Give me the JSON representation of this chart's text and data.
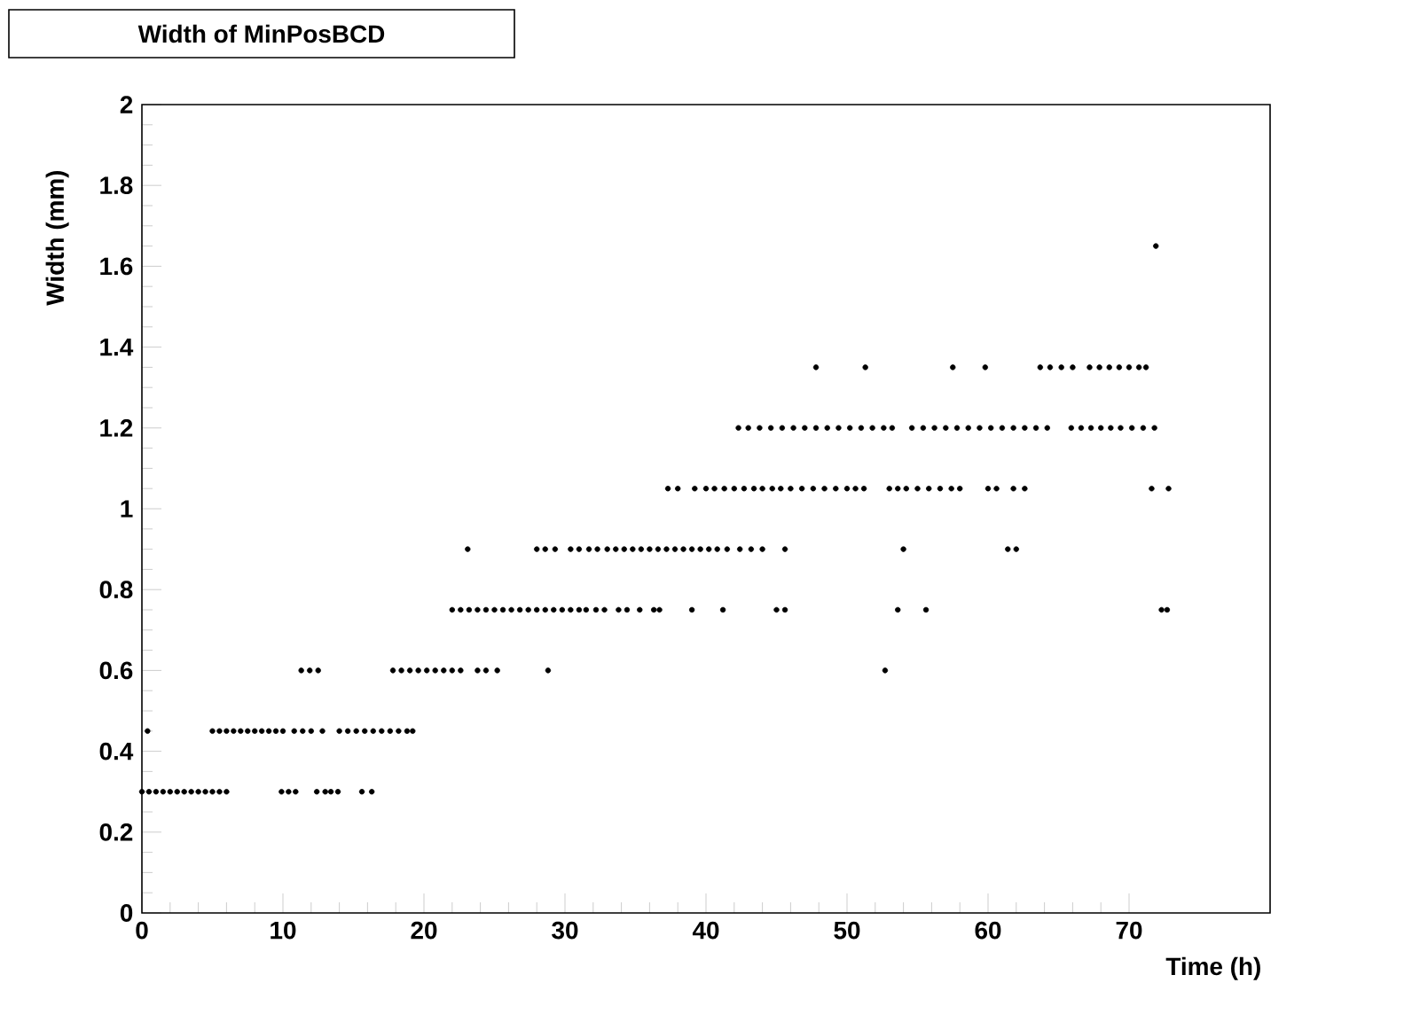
{
  "chart_data": {
    "type": "scatter",
    "title": "Width of MinPosBCD",
    "xlabel": "Time (h)",
    "ylabel": "Width (mm)",
    "color": "#000000",
    "xlim": [
      0,
      80
    ],
    "ylim": [
      0,
      2
    ],
    "xticks": [
      0,
      10,
      20,
      30,
      40,
      50,
      60,
      70
    ],
    "yticks": [
      0,
      0.2,
      0.4,
      0.6,
      0.8,
      1,
      1.2,
      1.4,
      1.6,
      1.8,
      2
    ],
    "x": [
      0,
      0.5,
      1,
      1.5,
      2,
      2.5,
      3,
      3.5,
      4,
      4.5,
      5,
      5.5,
      6,
      9.9,
      10.4,
      10.9,
      12.4,
      13,
      13.4,
      13.9,
      15.6,
      16.3,
      0.4,
      5,
      5.5,
      6,
      6.5,
      7,
      7.5,
      8,
      8.5,
      9,
      9.5,
      10,
      10.8,
      11.4,
      12,
      12.8,
      14,
      14.6,
      15.2,
      15.8,
      16.4,
      17,
      17.6,
      18.2,
      18.8,
      19.2,
      11.3,
      11.9,
      12.5,
      17.8,
      18.4,
      19,
      19.6,
      20.2,
      20.8,
      21.4,
      22,
      22.6,
      23.8,
      24.4,
      25.2,
      28.8,
      52.7,
      22,
      22.6,
      23.2,
      23.8,
      24.4,
      25,
      25.6,
      26.2,
      26.8,
      27.4,
      28,
      28.6,
      29.2,
      29.8,
      30.4,
      31,
      31.5,
      32.2,
      32.8,
      33.8,
      34.4,
      35.3,
      36.3,
      36.7,
      39,
      41.2,
      45,
      45.6,
      53.6,
      55.6,
      72.3,
      72.7,
      23.1,
      28,
      28.6,
      29.3,
      30.4,
      31,
      31.7,
      32.3,
      33,
      33.6,
      34.2,
      34.8,
      35.4,
      36,
      36.6,
      37.2,
      37.8,
      38.4,
      39,
      39.6,
      40.2,
      40.8,
      41.5,
      42.4,
      43.2,
      44,
      45.6,
      54,
      61.4,
      62,
      37.3,
      38,
      39.2,
      40,
      40.6,
      41.3,
      42,
      42.7,
      43.4,
      44,
      44.7,
      45.3,
      46,
      46.8,
      47.6,
      48.4,
      49.2,
      50,
      50.6,
      51.2,
      53,
      53.6,
      54.2,
      55,
      55.8,
      56.6,
      57.4,
      58,
      60,
      60.6,
      61.8,
      62.6,
      71.6,
      72.8,
      42.3,
      43,
      43.8,
      44.6,
      45.4,
      46.2,
      47,
      47.8,
      48.6,
      49.4,
      50.2,
      51,
      51.8,
      52.6,
      53.2,
      54.6,
      55.4,
      56.2,
      57,
      57.8,
      58.6,
      59.4,
      60.2,
      61,
      61.8,
      62.6,
      63.4,
      64.2,
      65.9,
      66.6,
      67.3,
      68,
      68.7,
      69.4,
      70.2,
      71,
      71.8,
      47.8,
      51.3,
      57.5,
      59.8,
      63.7,
      64.4,
      65.2,
      66,
      67.2,
      67.9,
      68.6,
      69.3,
      70,
      70.7,
      71.2,
      71.9
    ],
    "values": [
      0.3,
      0.3,
      0.3,
      0.3,
      0.3,
      0.3,
      0.3,
      0.3,
      0.3,
      0.3,
      0.3,
      0.3,
      0.3,
      0.3,
      0.3,
      0.3,
      0.3,
      0.3,
      0.3,
      0.3,
      0.3,
      0.3,
      0.45,
      0.45,
      0.45,
      0.45,
      0.45,
      0.45,
      0.45,
      0.45,
      0.45,
      0.45,
      0.45,
      0.45,
      0.45,
      0.45,
      0.45,
      0.45,
      0.45,
      0.45,
      0.45,
      0.45,
      0.45,
      0.45,
      0.45,
      0.45,
      0.45,
      0.45,
      0.6,
      0.6,
      0.6,
      0.6,
      0.6,
      0.6,
      0.6,
      0.6,
      0.6,
      0.6,
      0.6,
      0.6,
      0.6,
      0.6,
      0.6,
      0.6,
      0.6,
      0.75,
      0.75,
      0.75,
      0.75,
      0.75,
      0.75,
      0.75,
      0.75,
      0.75,
      0.75,
      0.75,
      0.75,
      0.75,
      0.75,
      0.75,
      0.75,
      0.75,
      0.75,
      0.75,
      0.75,
      0.75,
      0.75,
      0.75,
      0.75,
      0.75,
      0.75,
      0.75,
      0.75,
      0.75,
      0.75,
      0.75,
      0.75,
      0.9,
      0.9,
      0.9,
      0.9,
      0.9,
      0.9,
      0.9,
      0.9,
      0.9,
      0.9,
      0.9,
      0.9,
      0.9,
      0.9,
      0.9,
      0.9,
      0.9,
      0.9,
      0.9,
      0.9,
      0.9,
      0.9,
      0.9,
      0.9,
      0.9,
      0.9,
      0.9,
      0.9,
      0.9,
      0.9,
      1.05,
      1.05,
      1.05,
      1.05,
      1.05,
      1.05,
      1.05,
      1.05,
      1.05,
      1.05,
      1.05,
      1.05,
      1.05,
      1.05,
      1.05,
      1.05,
      1.05,
      1.05,
      1.05,
      1.05,
      1.05,
      1.05,
      1.05,
      1.05,
      1.05,
      1.05,
      1.05,
      1.05,
      1.05,
      1.05,
      1.05,
      1.05,
      1.05,
      1.05,
      1.2,
      1.2,
      1.2,
      1.2,
      1.2,
      1.2,
      1.2,
      1.2,
      1.2,
      1.2,
      1.2,
      1.2,
      1.2,
      1.2,
      1.2,
      1.2,
      1.2,
      1.2,
      1.2,
      1.2,
      1.2,
      1.2,
      1.2,
      1.2,
      1.2,
      1.2,
      1.2,
      1.2,
      1.2,
      1.2,
      1.2,
      1.2,
      1.2,
      1.2,
      1.2,
      1.2,
      1.2,
      1.35,
      1.35,
      1.35,
      1.35,
      1.35,
      1.35,
      1.35,
      1.35,
      1.35,
      1.35,
      1.35,
      1.35,
      1.35,
      1.35,
      1.35,
      1.65
    ]
  }
}
